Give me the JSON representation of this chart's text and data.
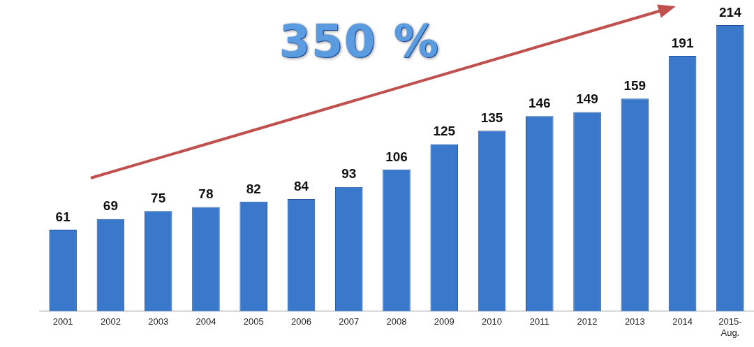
{
  "chart_data": {
    "type": "bar",
    "categories": [
      "2001",
      "2002",
      "2003",
      "2004",
      "2005",
      "2006",
      "2007",
      "2008",
      "2009",
      "2010",
      "2011",
      "2012",
      "2013",
      "2014",
      "2015-Aug."
    ],
    "values": [
      61,
      69,
      75,
      78,
      82,
      84,
      93,
      106,
      125,
      135,
      146,
      149,
      159,
      191,
      214
    ],
    "color": "#3a78cc",
    "data_labels": true,
    "grid": false,
    "annotations": [
      "350 %"
    ]
  }
}
